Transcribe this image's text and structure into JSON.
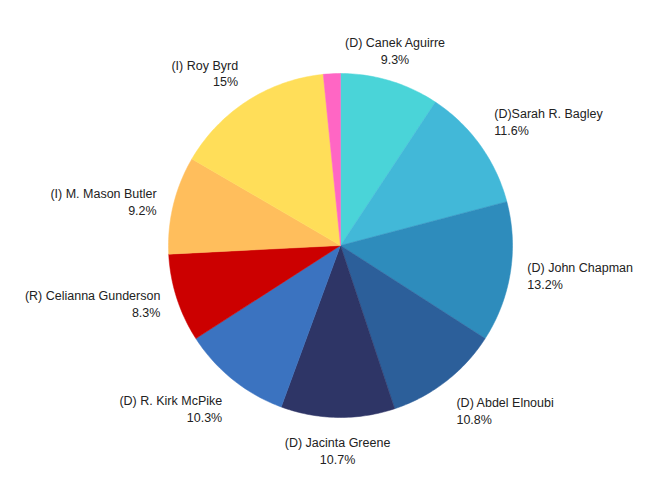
{
  "chart_data": {
    "type": "pie",
    "categories": [
      "(D) Canek Aguirre",
      "(D)Sarah R. Bagley",
      "(D) John Chapman",
      "(D) Abdel Elnoubi",
      "(D) Jacinta Greene",
      "(D) R. Kirk McPike",
      "(R) Celianna Gunderson",
      "(I) M. Mason Butler",
      "(I) Roy Byrd",
      null
    ],
    "values": [
      9.3,
      11.6,
      13.2,
      10.8,
      10.7,
      10.3,
      8.3,
      9.2,
      15,
      1.6
    ],
    "value_labels": [
      "9.3%",
      "11.6%",
      "13.2%",
      "10.8%",
      "10.7%",
      "10.3%",
      "8.3%",
      "9.2%",
      "15%",
      null
    ],
    "colors": [
      "#4ad4d8",
      "#42b8d8",
      "#2e8cbc",
      "#2c5f9a",
      "#2e3566",
      "#3b73c0",
      "#cc0000",
      "#ffbe5c",
      "#ffde59",
      "#ff66c4"
    ],
    "data_labels": true
  }
}
